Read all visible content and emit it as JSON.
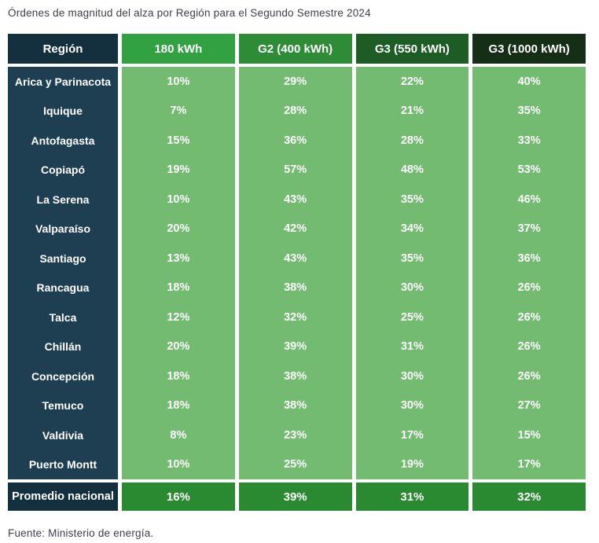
{
  "title": "Órdenes de magnitud del alza por Región para el Segundo Semestre 2024",
  "source": "Fuente: Ministerio de energía.",
  "colors": {
    "header_navy": "#14303E",
    "body_navy": "#1E3E52",
    "header_greens": [
      "#32A141",
      "#2E8C36",
      "#1E5C26",
      "#152F16"
    ],
    "body_green": "#72BB71",
    "footer_green": "#2A8A31",
    "title_text": "#3E3E4D",
    "cell_text": "#FFFFFF"
  },
  "chart_data": {
    "type": "table",
    "title": "Órdenes de magnitud del alza por Región para el Segundo Semestre 2024",
    "columns": [
      "Región",
      "180 kWh",
      "G2 (400 kWh)",
      "G3 (550 kWh)",
      "G3 (1000 kWh)"
    ],
    "rows": [
      {
        "region": "Arica y Parinacota",
        "values": [
          "10%",
          "29%",
          "22%",
          "40%"
        ]
      },
      {
        "region": "Iquique",
        "values": [
          "7%",
          "28%",
          "21%",
          "35%"
        ]
      },
      {
        "region": "Antofagasta",
        "values": [
          "15%",
          "36%",
          "28%",
          "33%"
        ]
      },
      {
        "region": "Copiapó",
        "values": [
          "19%",
          "57%",
          "48%",
          "53%"
        ]
      },
      {
        "region": "La Serena",
        "values": [
          "10%",
          "43%",
          "35%",
          "46%"
        ]
      },
      {
        "region": "Valparaíso",
        "values": [
          "20%",
          "42%",
          "34%",
          "37%"
        ]
      },
      {
        "region": "Santiago",
        "values": [
          "13%",
          "43%",
          "35%",
          "36%"
        ]
      },
      {
        "region": "Rancagua",
        "values": [
          "18%",
          "38%",
          "30%",
          "26%"
        ]
      },
      {
        "region": "Talca",
        "values": [
          "12%",
          "32%",
          "25%",
          "26%"
        ]
      },
      {
        "region": "Chillán",
        "values": [
          "20%",
          "39%",
          "31%",
          "26%"
        ]
      },
      {
        "region": "Concepción",
        "values": [
          "18%",
          "38%",
          "30%",
          "26%"
        ]
      },
      {
        "region": "Temuco",
        "values": [
          "18%",
          "38%",
          "30%",
          "27%"
        ]
      },
      {
        "region": "Valdivia",
        "values": [
          "8%",
          "23%",
          "17%",
          "15%"
        ]
      },
      {
        "region": "Puerto Montt",
        "values": [
          "10%",
          "25%",
          "19%",
          "17%"
        ]
      }
    ],
    "summary_row": {
      "region": "Promedio nacional",
      "values": [
        "16%",
        "39%",
        "31%",
        "32%"
      ]
    },
    "source": "Fuente: Ministerio de energía.",
    "legend_position": "none",
    "grid": false
  }
}
